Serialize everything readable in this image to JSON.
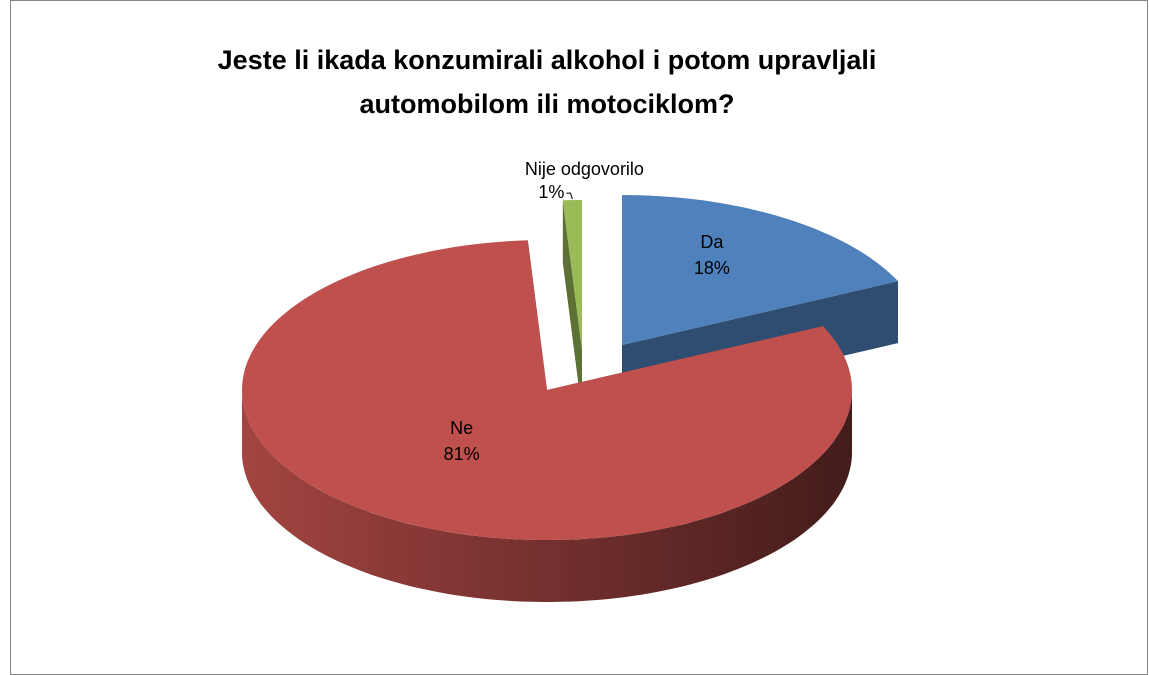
{
  "chart_data": {
    "type": "pie",
    "title": "Jeste li ikada konzumirali alkohol i potom upravljali automobilom ili motociklom?",
    "categories": [
      "Da",
      "Ne",
      "Nije odgovorilo"
    ],
    "values": [
      18,
      81,
      1
    ],
    "value_labels": [
      "18%",
      "81%",
      "1%"
    ],
    "colors": [
      "#4f81bd",
      "#c0504d",
      "#9bbb59"
    ],
    "three_d": true
  }
}
